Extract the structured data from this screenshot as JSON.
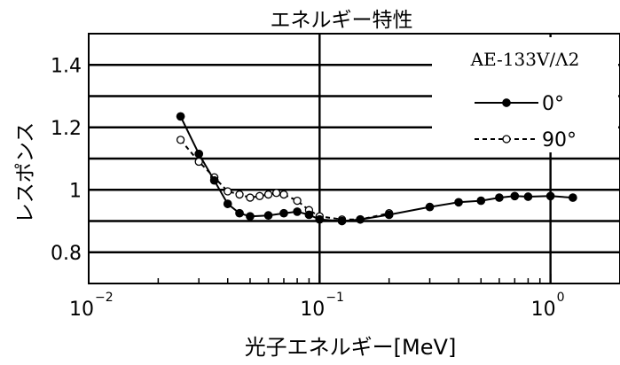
{
  "chart_data": {
    "type": "line",
    "title": "エネルギー特性",
    "xlabel": "光子エネルギー[MeV]",
    "ylabel": "レスポンス",
    "x_scale": "log",
    "xlim": [
      0.01,
      2
    ],
    "ylim": [
      0.7,
      1.5
    ],
    "x_ticks": [
      {
        "value": 0.01,
        "base": "10",
        "exp": "−2"
      },
      {
        "value": 0.1,
        "base": "10",
        "exp": "−1"
      },
      {
        "value": 1,
        "base": "10",
        "exp": "0"
      }
    ],
    "y_ticks": [
      {
        "value": 0.8,
        "label": "0.8"
      },
      {
        "value": 1.0,
        "label": "1"
      },
      {
        "value": 1.2,
        "label": "1.2"
      },
      {
        "value": 1.4,
        "label": "1.4"
      }
    ],
    "gridlines_y": [
      0.8,
      0.9,
      1.0,
      1.1,
      1.2,
      1.3,
      1.4
    ],
    "gridlines_x": [
      0.1,
      1
    ],
    "legend": {
      "header": "AE-133V/Λ2",
      "position": "top-right"
    },
    "series": [
      {
        "name": "0°",
        "marker": "filled-circle",
        "line": "solid",
        "x": [
          0.025,
          0.03,
          0.035,
          0.04,
          0.045,
          0.05,
          0.06,
          0.07,
          0.08,
          0.09,
          0.1,
          0.125,
          0.15,
          0.2,
          0.3,
          0.4,
          0.5,
          0.6,
          0.7,
          0.8,
          1.0,
          1.25
        ],
        "y": [
          1.235,
          1.115,
          1.03,
          0.955,
          0.925,
          0.915,
          0.918,
          0.925,
          0.93,
          0.92,
          0.905,
          0.9,
          0.905,
          0.92,
          0.945,
          0.96,
          0.965,
          0.975,
          0.98,
          0.978,
          0.98,
          0.975
        ]
      },
      {
        "name": "90°",
        "marker": "open-circle",
        "line": "dashed",
        "x": [
          0.025,
          0.03,
          0.035,
          0.04,
          0.045,
          0.05,
          0.055,
          0.06,
          0.065,
          0.07,
          0.08,
          0.09,
          0.1,
          0.125,
          0.15,
          0.2
        ],
        "y": [
          1.16,
          1.09,
          1.04,
          0.995,
          0.985,
          0.975,
          0.98,
          0.985,
          0.99,
          0.985,
          0.965,
          0.935,
          0.915,
          0.905,
          0.905,
          0.925
        ]
      }
    ]
  }
}
